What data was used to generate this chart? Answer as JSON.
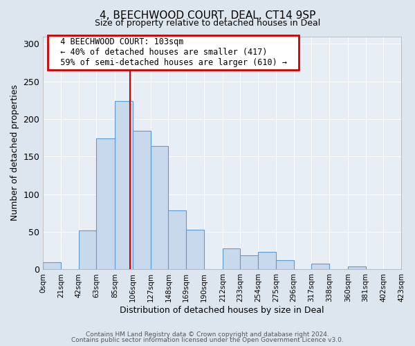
{
  "title1": "4, BEECHWOOD COURT, DEAL, CT14 9SP",
  "title2": "Size of property relative to detached houses in Deal",
  "xlabel": "Distribution of detached houses by size in Deal",
  "ylabel": "Number of detached properties",
  "bin_labels": [
    "0sqm",
    "21sqm",
    "42sqm",
    "63sqm",
    "85sqm",
    "106sqm",
    "127sqm",
    "148sqm",
    "169sqm",
    "190sqm",
    "212sqm",
    "233sqm",
    "254sqm",
    "275sqm",
    "296sqm",
    "317sqm",
    "338sqm",
    "360sqm",
    "381sqm",
    "402sqm",
    "423sqm"
  ],
  "bin_edges": [
    0,
    21,
    42,
    63,
    85,
    106,
    127,
    148,
    169,
    190,
    212,
    233,
    254,
    275,
    296,
    317,
    338,
    360,
    381,
    402,
    423
  ],
  "bar_heights": [
    10,
    0,
    52,
    174,
    224,
    184,
    164,
    79,
    53,
    0,
    28,
    19,
    23,
    12,
    0,
    8,
    0,
    4,
    0,
    0,
    0
  ],
  "bar_color": "#c9d9ec",
  "bar_edge_color": "#5b9bd5",
  "vline_x": 103,
  "vline_color": "#cc0000",
  "ylim": [
    0,
    310
  ],
  "yticks": [
    0,
    50,
    100,
    150,
    200,
    250,
    300
  ],
  "annotation_title": "4 BEECHWOOD COURT: 103sqm",
  "annotation_line1": "← 40% of detached houses are smaller (417)",
  "annotation_line2": "59% of semi-detached houses are larger (610) →",
  "annotation_box_color": "#cc0000",
  "footer1": "Contains HM Land Registry data © Crown copyright and database right 2024.",
  "footer2": "Contains public sector information licensed under the Open Government Licence v3.0.",
  "background_color": "#dde5ef",
  "plot_bg_color": "#e8eef6",
  "grid_color": "#ffffff",
  "spine_color": "#aaaaaa"
}
